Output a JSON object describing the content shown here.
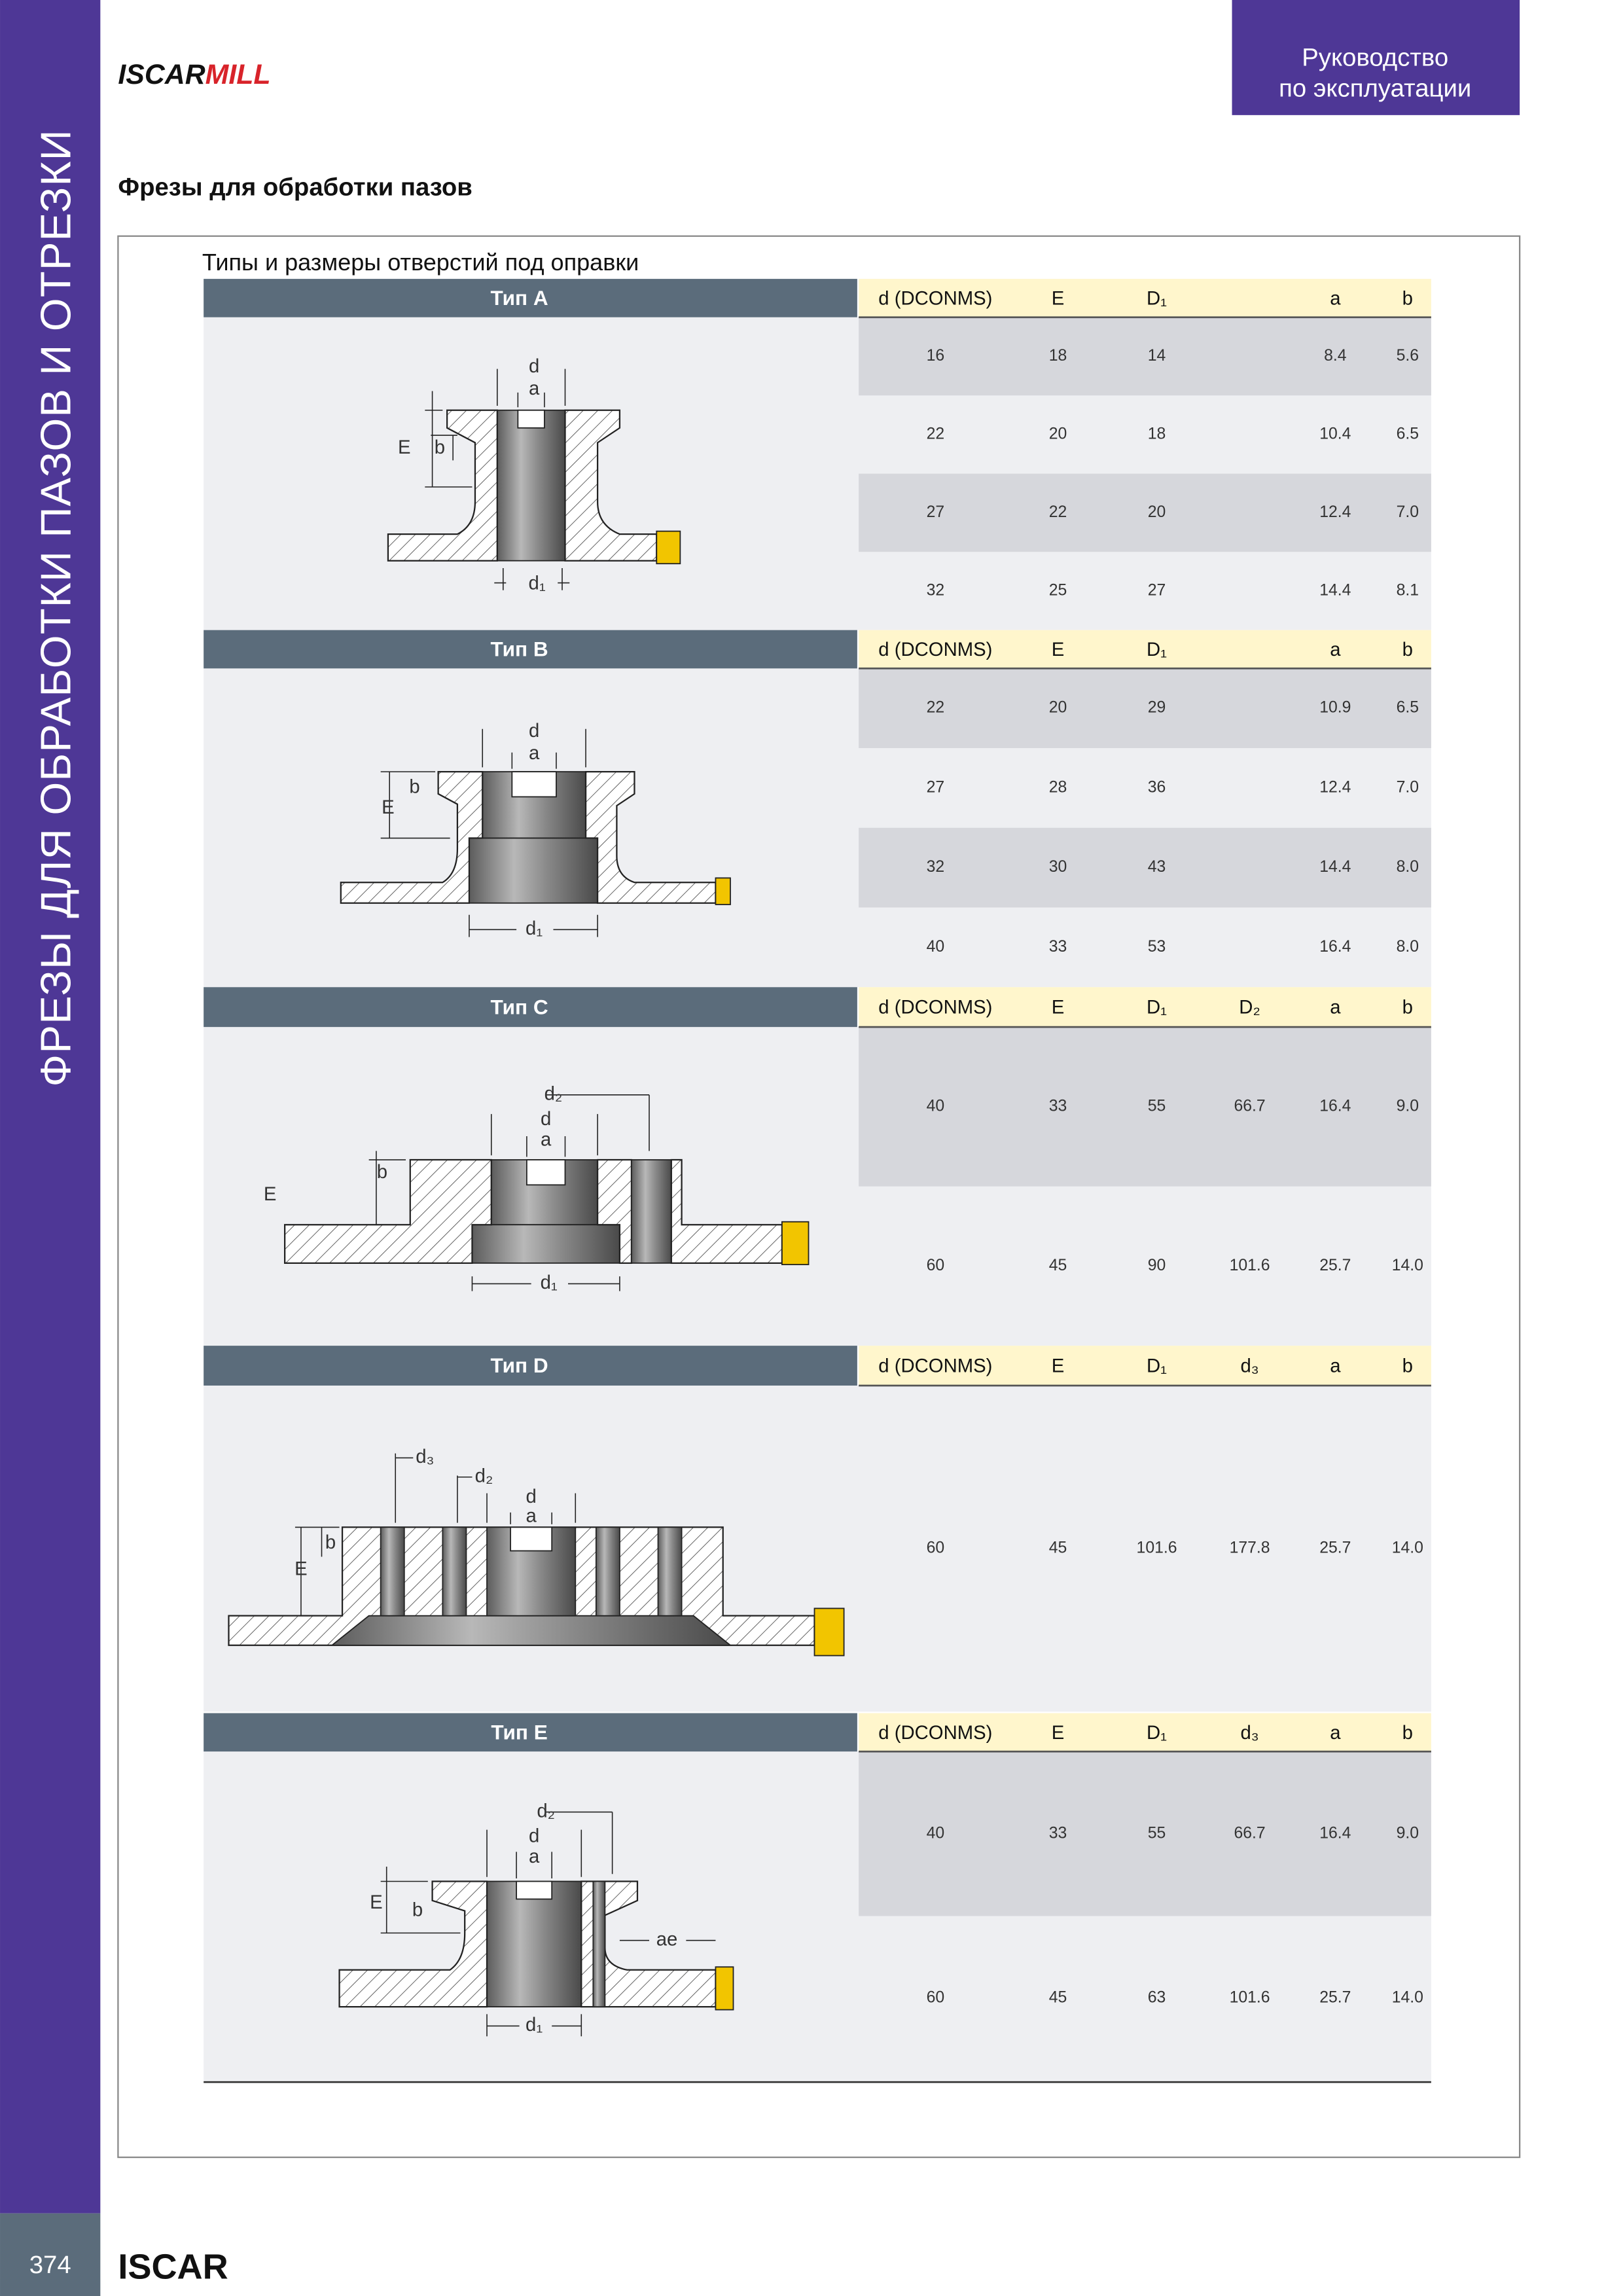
{
  "header": {
    "logo": [
      "ISCAR",
      "MILL"
    ],
    "manual": [
      "Руководство",
      "по эксплуатации"
    ]
  },
  "sidebar": {
    "title": "ФРЕЗЫ ДЛЯ ОБРАБОТКИ ПАЗОВ И ОТРЕЗКИ",
    "page_number": "374"
  },
  "page_title": "Фрезы для обработки пазов",
  "caption": "Типы и размеры отверстий под оправки",
  "sections": [
    {
      "title": "Тип A",
      "headers": [
        "d (DCONMS)",
        "E",
        "D₁",
        null,
        "a",
        "b"
      ],
      "rows": [
        [
          "16",
          "18",
          "14",
          null,
          "8.4",
          "5.6"
        ],
        [
          "22",
          "20",
          "18",
          null,
          "10.4",
          "6.5"
        ],
        [
          "27",
          "22",
          "20",
          null,
          "12.4",
          "7.0"
        ],
        [
          "32",
          "25",
          "27",
          null,
          "14.4",
          "8.1"
        ]
      ],
      "labels": [
        "d",
        "a",
        "E",
        "b",
        "d₁"
      ]
    },
    {
      "title": "Тип B",
      "headers": [
        "d (DCONMS)",
        "E",
        "D₁",
        null,
        "a",
        "b"
      ],
      "rows": [
        [
          "22",
          "20",
          "29",
          null,
          "10.9",
          "6.5"
        ],
        [
          "27",
          "28",
          "36",
          null,
          "12.4",
          "7.0"
        ],
        [
          "32",
          "30",
          "43",
          null,
          "14.4",
          "8.0"
        ],
        [
          "40",
          "33",
          "53",
          null,
          "16.4",
          "8.0"
        ]
      ],
      "labels": [
        "d",
        "a",
        "b",
        "E",
        "d₁"
      ]
    },
    {
      "title": "Тип C",
      "headers": [
        "d (DCONMS)",
        "E",
        "D₁",
        "D₂",
        "a",
        "b"
      ],
      "rows": [
        [
          "40",
          "33",
          "55",
          "66.7",
          "16.4",
          "9.0"
        ],
        [
          "60",
          "45",
          "90",
          "101.6",
          "25.7",
          "14.0"
        ]
      ],
      "labels": [
        "d₂",
        "d",
        "a",
        "b",
        "E",
        "d₁"
      ]
    },
    {
      "title": "Тип D",
      "headers": [
        "d (DCONMS)",
        "E",
        "D₁",
        "d₃",
        "a",
        "b"
      ],
      "rows": [
        [
          "60",
          "45",
          "101.6",
          "177.8",
          "25.7",
          "14.0"
        ]
      ],
      "labels": [
        "d₃",
        "d₂",
        "d",
        "a",
        "b",
        "E"
      ]
    },
    {
      "title": "Тип E",
      "headers": [
        "d (DCONMS)",
        "E",
        "D₁",
        "d₃",
        "a",
        "b"
      ],
      "rows": [
        [
          "40",
          "33",
          "55",
          "66.7",
          "16.4",
          "9.0"
        ],
        [
          "60",
          "45",
          "63",
          "101.6",
          "25.7",
          "14.0"
        ]
      ],
      "labels": [
        "d₂",
        "d",
        "a",
        "E",
        "b",
        "ae",
        "d₁"
      ]
    }
  ],
  "footer": {
    "logo": "ISCAR"
  }
}
